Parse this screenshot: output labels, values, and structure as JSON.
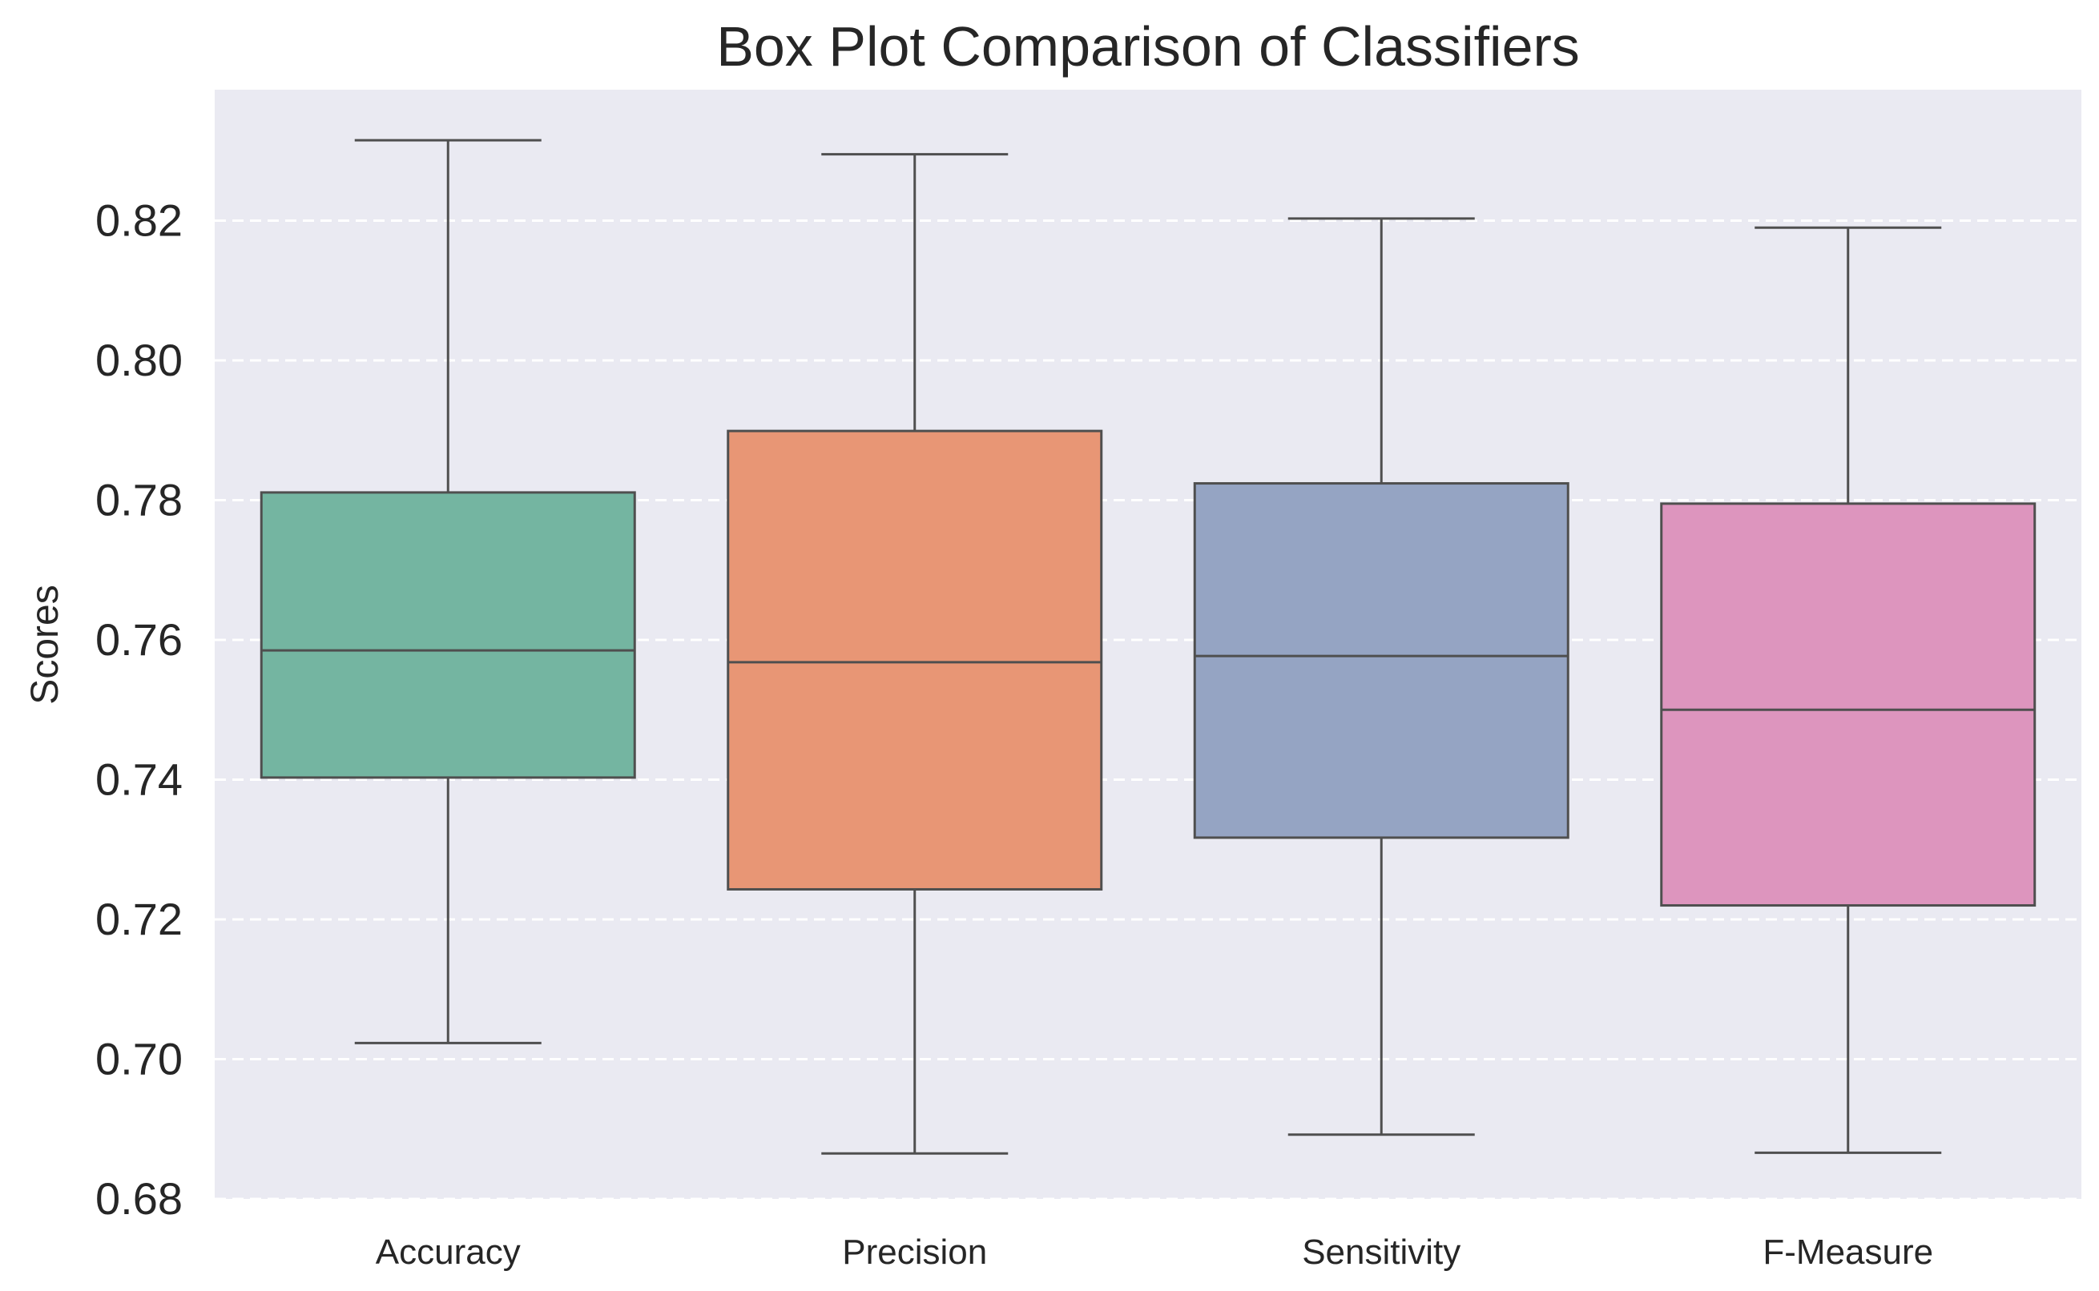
{
  "chart_data": {
    "type": "box",
    "title": "Box Plot Comparison of Classifiers",
    "xlabel": "",
    "ylabel": "Scores",
    "ylim": [
      0.68,
      0.838
    ],
    "yticks": [
      "0.68",
      "0.70",
      "0.72",
      "0.74",
      "0.76",
      "0.78",
      "0.80",
      "0.82"
    ],
    "grid": true,
    "categories": [
      "Accuracy",
      "Precision",
      "Sensitivity",
      "F-Measure"
    ],
    "boxes": [
      {
        "category": "Accuracy",
        "whisker_low": 0.7023,
        "q1": 0.7403,
        "median": 0.7585,
        "q3": 0.7811,
        "whisker_high": 0.8315,
        "color": "#74b5a1"
      },
      {
        "category": "Precision",
        "whisker_low": 0.6865,
        "q1": 0.7243,
        "median": 0.7568,
        "q3": 0.7899,
        "whisker_high": 0.8295,
        "color": "#e89675"
      },
      {
        "category": "Sensitivity",
        "whisker_low": 0.6892,
        "q1": 0.7317,
        "median": 0.7577,
        "q3": 0.7824,
        "whisker_high": 0.8203,
        "color": "#95a4c3"
      },
      {
        "category": "F-Measure",
        "whisker_low": 0.6866,
        "q1": 0.722,
        "median": 0.75,
        "q3": 0.7795,
        "whisker_high": 0.819,
        "color": "#dd95be"
      }
    ],
    "colors": {
      "background": "#eaeaf2",
      "grid": "#ffffff",
      "line": "#4f4f4f"
    }
  }
}
